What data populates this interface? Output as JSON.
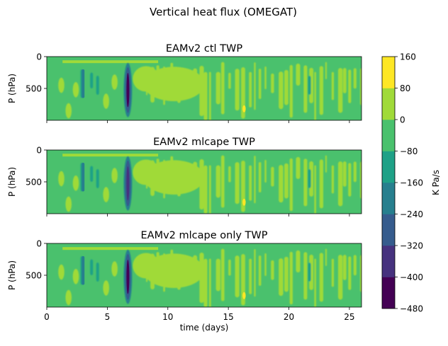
{
  "figure_title": "Vertical heat flux (OMEGAT)",
  "chart_data": [
    {
      "type": "heatmap",
      "title": "EAMv2 ctl TWP",
      "xlabel": "",
      "ylabel": "P (hPa)",
      "xlim": [
        0,
        26
      ],
      "ylim": [
        1000,
        0
      ],
      "y_ticks": [
        0,
        500
      ],
      "x_ticks": [
        0,
        5,
        10,
        15,
        20,
        25
      ],
      "x_tick_labels_shown": false,
      "background_level_range": [
        -80,
        0
      ],
      "features": [
        {
          "kind": "positive_band",
          "x": [
            1.3,
            9.2
          ],
          "p": 80,
          "level": [
            0,
            80
          ]
        },
        {
          "kind": "negative_core",
          "x": 6.7,
          "p": [
            100,
            950
          ],
          "level": [
            -480,
            -400
          ]
        },
        {
          "kind": "negative_column",
          "x": 3.0,
          "p": [
            200,
            650
          ],
          "level": [
            -240,
            -160
          ]
        },
        {
          "kind": "positive_max",
          "x": 16.3,
          "p": 820,
          "level": [
            80,
            160
          ]
        }
      ]
    },
    {
      "type": "heatmap",
      "title": "EAMv2 mlcape TWP",
      "xlabel": "",
      "ylabel": "P (hPa)",
      "xlim": [
        0,
        26
      ],
      "ylim": [
        1000,
        0
      ],
      "y_ticks": [
        0,
        500
      ],
      "x_ticks": [
        0,
        5,
        10,
        15,
        20,
        25
      ],
      "x_tick_labels_shown": false,
      "background_level_range": [
        -80,
        0
      ],
      "features": [
        {
          "kind": "positive_band",
          "x": [
            1.3,
            9.2
          ],
          "p": 80,
          "level": [
            0,
            80
          ]
        },
        {
          "kind": "negative_core",
          "x": 6.7,
          "p": [
            100,
            950
          ],
          "level": [
            -400,
            -320
          ]
        },
        {
          "kind": "negative_column",
          "x": 3.0,
          "p": [
            200,
            650
          ],
          "level": [
            -240,
            -160
          ]
        },
        {
          "kind": "positive_max",
          "x": 16.3,
          "p": 820,
          "level": [
            80,
            160
          ]
        }
      ]
    },
    {
      "type": "heatmap",
      "title": "EAMv2 mlcape only TWP",
      "xlabel": "time (days)",
      "ylabel": "P (hPa)",
      "xlim": [
        0,
        26
      ],
      "ylim": [
        1000,
        0
      ],
      "y_ticks": [
        0,
        500
      ],
      "x_ticks": [
        0,
        5,
        10,
        15,
        20,
        25
      ],
      "x_tick_labels_shown": true,
      "background_level_range": [
        -80,
        0
      ],
      "features": [
        {
          "kind": "positive_band",
          "x": [
            1.3,
            9.2
          ],
          "p": 80,
          "level": [
            0,
            80
          ]
        },
        {
          "kind": "negative_core",
          "x": 6.7,
          "p": [
            100,
            950
          ],
          "level": [
            -480,
            -400
          ]
        },
        {
          "kind": "negative_column",
          "x": 3.0,
          "p": [
            200,
            650
          ],
          "level": [
            -240,
            -160
          ]
        },
        {
          "kind": "positive_max",
          "x": 16.3,
          "p": 820,
          "level": [
            80,
            160
          ]
        }
      ]
    }
  ],
  "colorbar": {
    "label": "K Pa/s",
    "levels": [
      -480,
      -400,
      -320,
      -240,
      -160,
      -80,
      0,
      80,
      160
    ],
    "colors": [
      "#440154",
      "#46327e",
      "#365c8d",
      "#277f8e",
      "#1fa187",
      "#4ac16d",
      "#a0da39",
      "#fde725"
    ]
  }
}
